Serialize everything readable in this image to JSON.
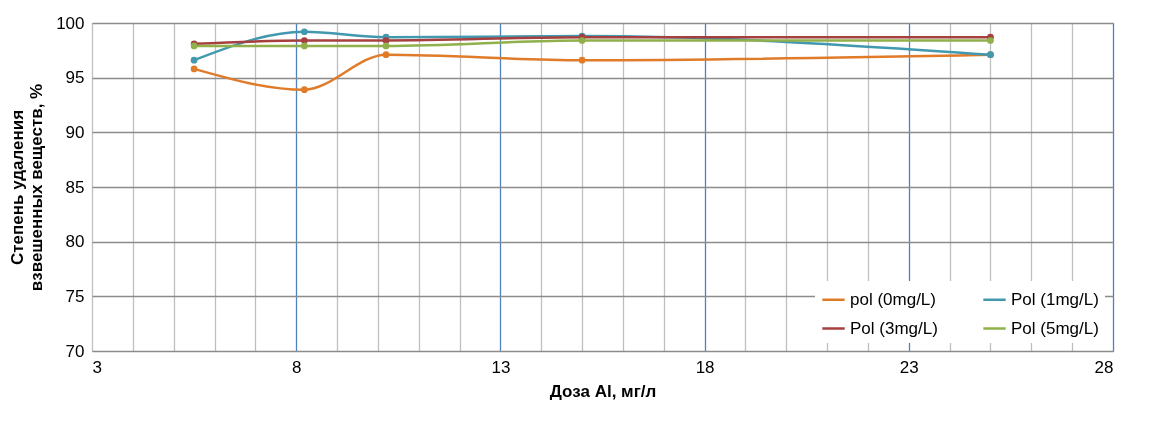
{
  "chart_data": {
    "type": "line",
    "xlabel": "Доза Al, мг/л",
    "ylabel": "Степень удаления взвешенных веществ, %",
    "xlim": [
      3,
      28
    ],
    "ylim": [
      70,
      100
    ],
    "xticks": [
      3,
      {
        "value": 4,
        "label": null
      },
      {
        "value": 5,
        "label": null
      },
      {
        "value": 6,
        "label": null
      },
      {
        "value": 7,
        "label": null
      },
      8,
      {
        "value": 9,
        "label": null
      },
      {
        "value": 10,
        "label": null
      },
      {
        "value": 11,
        "label": null
      },
      {
        "value": 12,
        "label": null
      },
      13,
      {
        "value": 14,
        "label": null
      },
      {
        "value": 15,
        "label": null
      },
      {
        "value": 16,
        "label": null
      },
      {
        "value": 17,
        "label": null
      },
      18,
      {
        "value": 19,
        "label": null
      },
      {
        "value": 20,
        "label": null
      },
      {
        "value": 21,
        "label": null
      },
      {
        "value": 22,
        "label": null
      },
      23,
      {
        "value": 24,
        "label": null
      },
      {
        "value": 25,
        "label": null
      },
      {
        "value": 26,
        "label": null
      },
      {
        "value": 27,
        "label": null
      },
      28
    ],
    "yticks": [
      70,
      75,
      80,
      85,
      90,
      95,
      100
    ],
    "grid": true,
    "legend": "bottom right",
    "marker": "circle",
    "line_style": "solid",
    "x": [
      5.5,
      8.2,
      10.2,
      15,
      25
    ],
    "series": [
      {
        "name": "pol (0mg/L)",
        "color": "#e07b2a",
        "values": [
          95.8,
          93.9,
          97.1,
          96.6,
          97.1
        ]
      },
      {
        "name": "Pol (1mg/L)",
        "color": "#4198af",
        "values": [
          96.6,
          99.2,
          98.7,
          98.8,
          97.1
        ]
      },
      {
        "name": "Pol (3mg/L)",
        "color": "#a5403f",
        "values": [
          98.1,
          98.4,
          98.4,
          98.7,
          98.7
        ]
      },
      {
        "name": "Pol (5mg/L)",
        "color": "#8fb04a",
        "values": [
          97.9,
          97.9,
          97.9,
          98.4,
          98.4
        ]
      }
    ]
  }
}
